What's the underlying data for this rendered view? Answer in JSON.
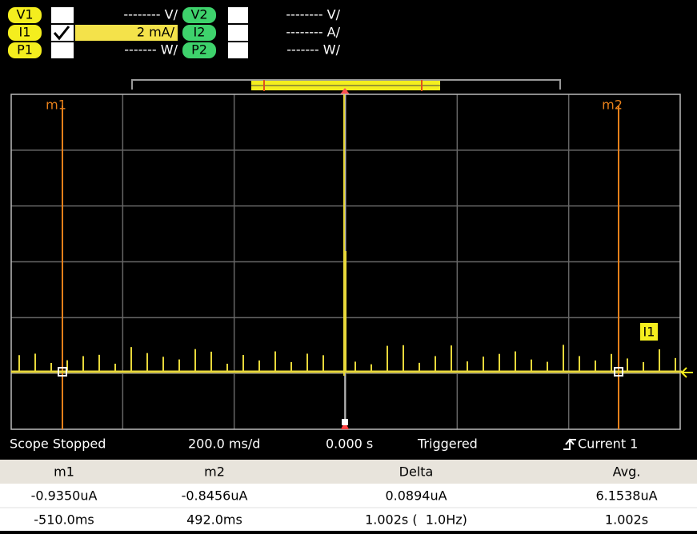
{
  "channels": [
    {
      "label": "V1",
      "scale": "-------- V/"
    },
    {
      "label": "V2",
      "scale": "-------- V/"
    },
    {
      "label": "I1",
      "scale": "2 mA/"
    },
    {
      "label": "I2",
      "scale": "-------- A/"
    },
    {
      "label": "P1",
      "scale": "------- W/"
    },
    {
      "label": "P2",
      "scale": "------- W/"
    }
  ],
  "markers": {
    "m1": "m1",
    "m2": "m2",
    "trace": "I1"
  },
  "status": {
    "state": "Scope Stopped",
    "timebase": "200.0 ms/d",
    "offset": "0.000 s",
    "trigger": "Triggered",
    "source": "Current 1"
  },
  "table": {
    "headers": [
      "m1",
      "m2",
      "Delta",
      "Avg."
    ],
    "rows": [
      [
        "-0.9350uA",
        "-0.8456uA",
        "0.0894uA",
        "6.1538uA"
      ],
      [
        "-510.0ms",
        "492.0ms",
        "1.002s (  1.0Hz)",
        "1.002s"
      ]
    ]
  }
}
